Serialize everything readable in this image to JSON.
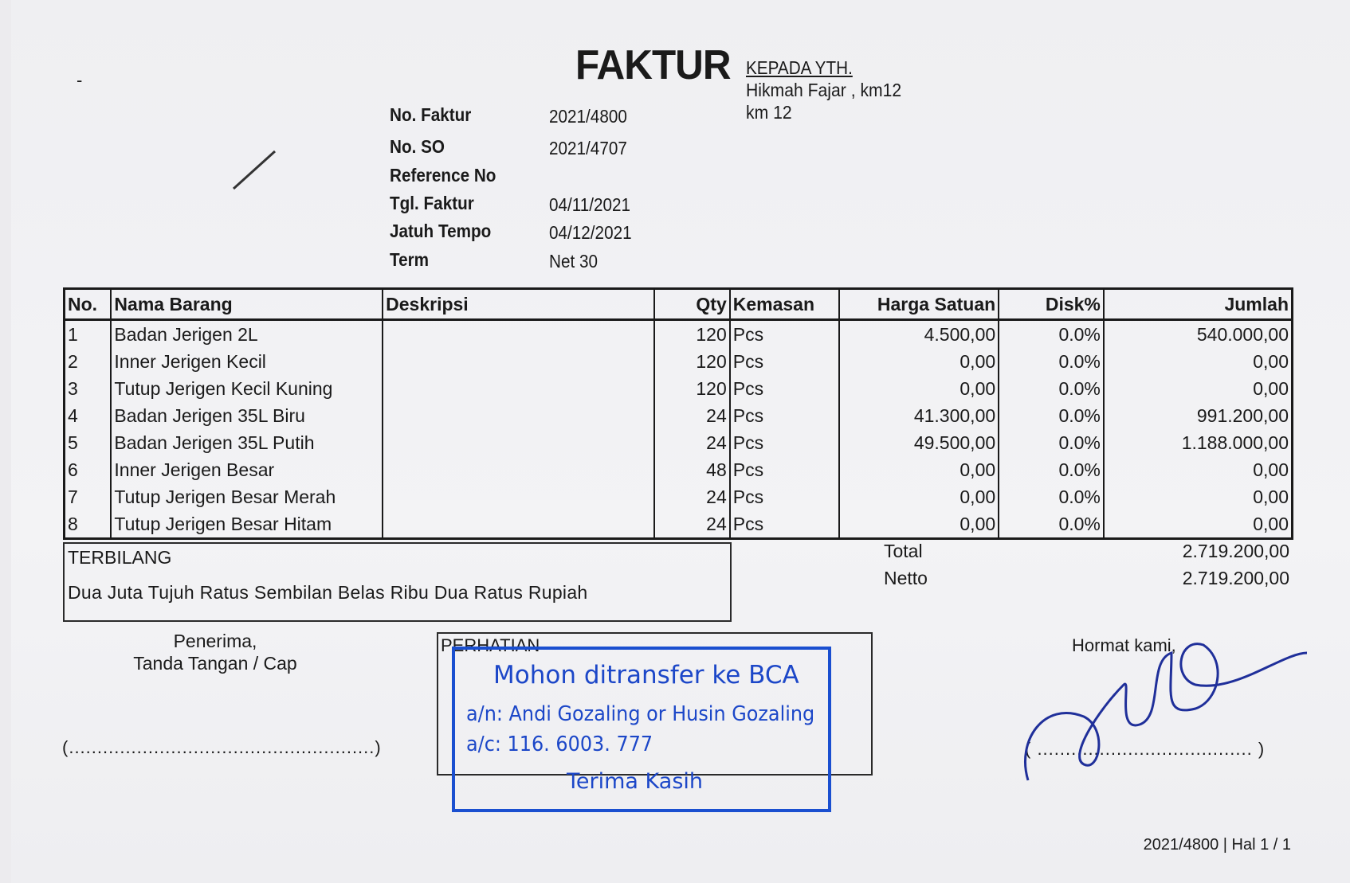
{
  "header": {
    "title": "FAKTUR",
    "recipient_label": "KEPADA YTH.",
    "recipient_lines": [
      "Hikmah Fajar , km12",
      "km 12"
    ]
  },
  "meta": [
    {
      "label": "No. Faktur",
      "value": "2021/4800"
    },
    {
      "label": "No. SO",
      "value": "2021/4707"
    },
    {
      "label": "Reference No",
      "value": ""
    },
    {
      "label": "Tgl. Faktur",
      "value": "04/11/2021"
    },
    {
      "label": "Jatuh Tempo",
      "value": "04/12/2021"
    },
    {
      "label": "Term",
      "value": "Net 30"
    }
  ],
  "table": {
    "columns": [
      "No.",
      "Nama Barang",
      "Deskripsi",
      "Qty",
      "Kemasan",
      "Harga Satuan",
      "Disk%",
      "Jumlah"
    ],
    "rows": [
      [
        "1",
        "Badan Jerigen 2L",
        "",
        "120",
        "Pcs",
        "4.500,00",
        "0.0%",
        "540.000,00"
      ],
      [
        "2",
        "Inner Jerigen Kecil",
        "",
        "120",
        "Pcs",
        "0,00",
        "0.0%",
        "0,00"
      ],
      [
        "3",
        "Tutup Jerigen Kecil Kuning",
        "",
        "120",
        "Pcs",
        "0,00",
        "0.0%",
        "0,00"
      ],
      [
        "4",
        "Badan Jerigen 35L Biru",
        "",
        "24",
        "Pcs",
        "41.300,00",
        "0.0%",
        "991.200,00"
      ],
      [
        "5",
        "Badan Jerigen 35L Putih",
        "",
        "24",
        "Pcs",
        "49.500,00",
        "0.0%",
        "1.188.000,00"
      ],
      [
        "6",
        "Inner Jerigen Besar",
        "",
        "48",
        "Pcs",
        "0,00",
        "0.0%",
        "0,00"
      ],
      [
        "7",
        "Tutup Jerigen Besar Merah",
        "",
        "24",
        "Pcs",
        "0,00",
        "0.0%",
        "0,00"
      ],
      [
        "8",
        "Tutup Jerigen Besar Hitam",
        "",
        "24",
        "Pcs",
        "0,00",
        "0.0%",
        "0,00"
      ]
    ]
  },
  "terbilang": {
    "label": "TERBILANG",
    "text": "Dua Juta Tujuh Ratus Sembilan Belas Ribu Dua Ratus Rupiah"
  },
  "totals": {
    "total_label": "Total",
    "total_value": "2.719.200,00",
    "netto_label": "Netto",
    "netto_value": "2.719.200,00"
  },
  "receiver": {
    "line1": "Penerima,",
    "line2": "Tanda Tangan / Cap",
    "sign_line": "(......................................................)"
  },
  "notice": {
    "label": "PERHATIAN",
    "stamp_lines": [
      "Mohon ditransfer ke BCA",
      "a/n: Andi Gozaling or Husin Gozaling",
      "a/c: 116. 6003. 777",
      "Terima Kasih"
    ],
    "stamp_color": "#1c47c8"
  },
  "sender": {
    "label": "Hormat kami,",
    "sign_line": "( ...................................... )",
    "signature_color": "#1f2f9a"
  },
  "footer": {
    "page_ref": "2021/4800 | Hal 1 / 1"
  }
}
